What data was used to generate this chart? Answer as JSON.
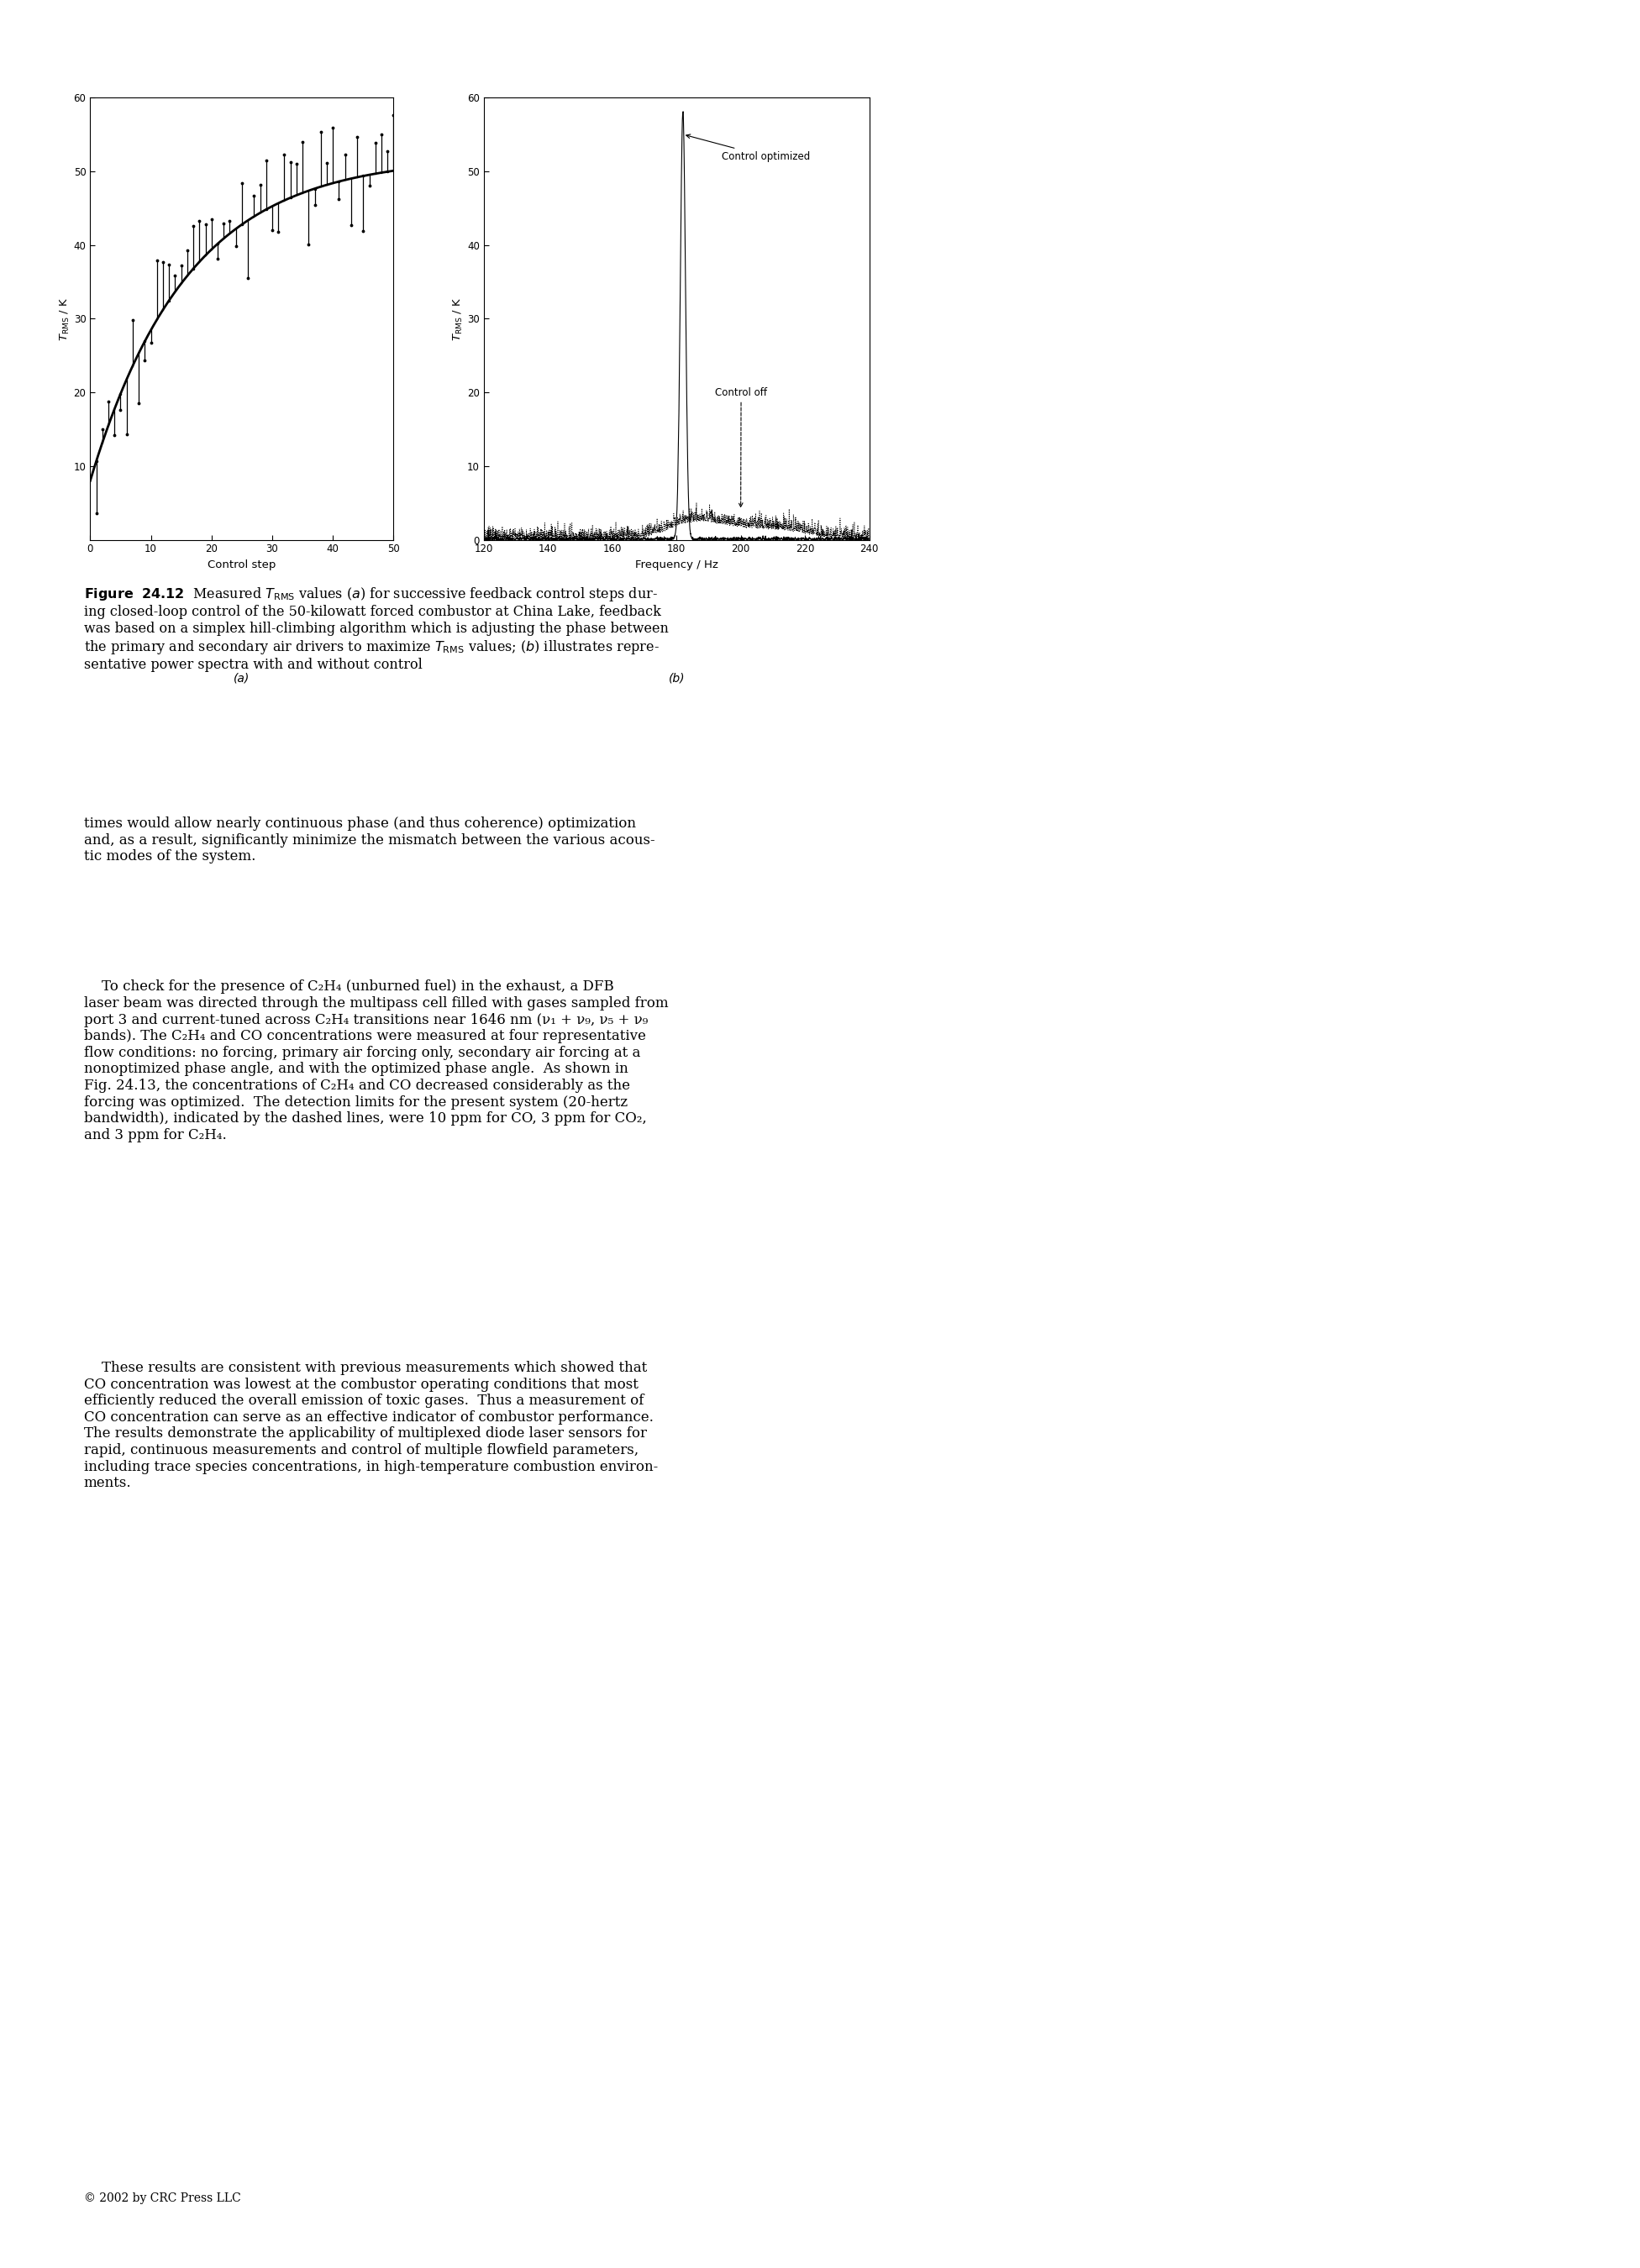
{
  "fig_width": 19.52,
  "fig_height": 27.0,
  "bg_color": "#ffffff",
  "plot_a": {
    "xlabel": "Control step",
    "ylabel_latex": "$T_{\\rm RMS}$ / K",
    "xlim": [
      0,
      50
    ],
    "ylim": [
      0,
      60
    ],
    "xticks": [
      0,
      10,
      20,
      30,
      40,
      50
    ],
    "yticks": [
      10,
      20,
      30,
      40,
      50,
      60
    ],
    "label": "(a)"
  },
  "plot_b": {
    "xlabel": "Frequency / Hz",
    "ylabel_latex": "$T_{\\rm RMS}$ / K",
    "xlim": [
      120,
      240
    ],
    "ylim": [
      0,
      60
    ],
    "xticks": [
      120,
      140,
      160,
      180,
      200,
      220,
      240
    ],
    "yticks": [
      0,
      10,
      20,
      30,
      40,
      50,
      60
    ],
    "label": "(b)",
    "annotation_optimized": "Control optimized",
    "annotation_off": "Control off",
    "peak_freq": 182
  },
  "footer": "© 2002 by CRC Press LLC"
}
